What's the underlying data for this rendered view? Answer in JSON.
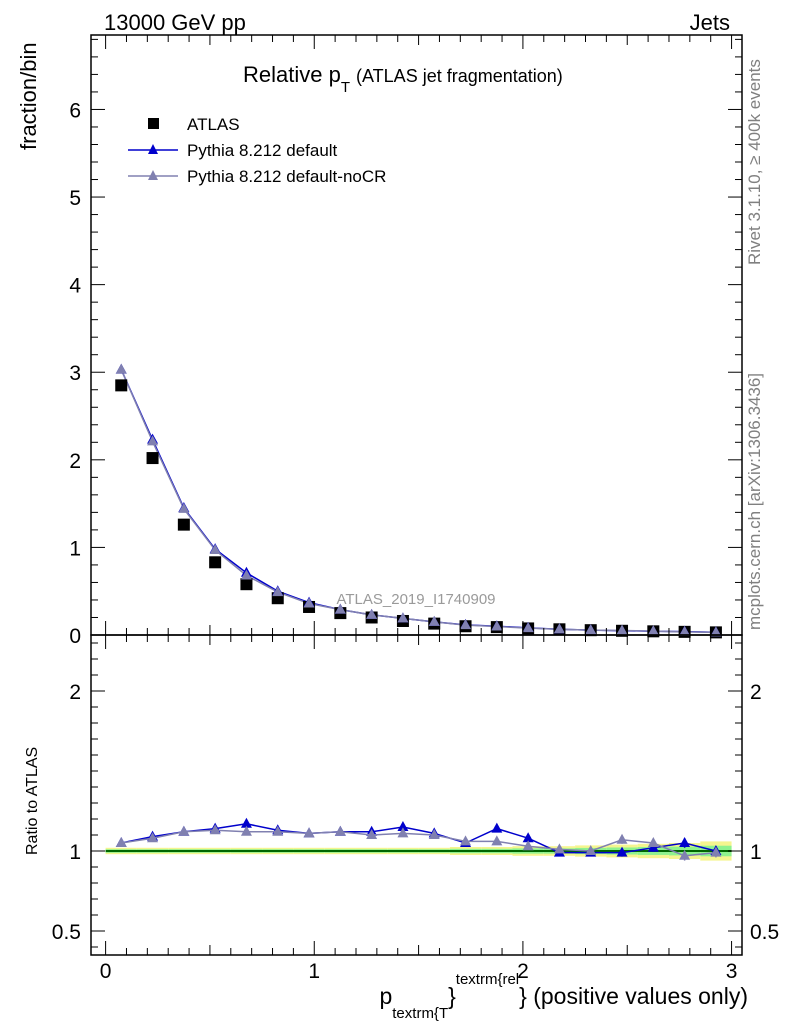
{
  "header": {
    "left": "13000 GeV pp",
    "right": "Jets"
  },
  "side_text": {
    "rivet": "Rivet 3.1.10, ≥ 400k events",
    "mcplots": "mcplots.cern.ch [arXiv:1306.3436]"
  },
  "chart_data": [
    {
      "type": "scatter",
      "panel": "main",
      "title_main": "Relative p",
      "title_sub": "T",
      "title_paren": "(ATLAS jet fragmentation)",
      "ylabel": "fraction/bin",
      "analysis_label": "ATLAS_2019_I1740909",
      "xlim": [
        -0.07,
        3.05
      ],
      "ylim": [
        0,
        6.85
      ],
      "yticks": [
        0,
        1,
        2,
        3,
        4,
        5,
        6
      ],
      "x": [
        0.075,
        0.225,
        0.375,
        0.525,
        0.675,
        0.825,
        0.975,
        1.125,
        1.275,
        1.425,
        1.575,
        1.725,
        1.875,
        2.025,
        2.175,
        2.325,
        2.475,
        2.625,
        2.775,
        2.925
      ],
      "legend": [
        "ATLAS",
        "Pythia 8.212 default",
        "Pythia 8.212 default-noCR"
      ],
      "series": [
        {
          "name": "ATLAS",
          "color": "#000000",
          "marker": "square",
          "values": [
            2.85,
            2.02,
            1.26,
            0.83,
            0.58,
            0.42,
            0.32,
            0.25,
            0.2,
            0.16,
            0.13,
            0.1,
            0.09,
            0.075,
            0.065,
            0.055,
            0.048,
            0.042,
            0.036,
            0.03
          ]
        },
        {
          "name": "Pythia 8.212 default",
          "color": "#0000cc",
          "marker": "triangle",
          "values": [
            3.03,
            2.23,
            1.45,
            0.98,
            0.71,
            0.5,
            0.37,
            0.29,
            0.23,
            0.19,
            0.15,
            0.115,
            0.1,
            0.082,
            0.066,
            0.056,
            0.049,
            0.043,
            0.038,
            0.031
          ]
        },
        {
          "name": "Pythia 8.212 default-noCR",
          "color": "#8080b0",
          "marker": "triangle",
          "values": [
            3.03,
            2.21,
            1.44,
            0.97,
            0.68,
            0.49,
            0.36,
            0.29,
            0.23,
            0.19,
            0.15,
            0.113,
            0.097,
            0.079,
            0.066,
            0.055,
            0.051,
            0.044,
            0.035,
            0.03
          ]
        }
      ]
    },
    {
      "type": "line",
      "panel": "ratio",
      "ylabel": "Ratio to ATLAS",
      "xlabel_main": "p",
      "xlabel_sub": "textrm{T",
      "xlabel_brace": "}",
      "xlabel_sup": "textrm{rel",
      "xlabel_tail": "} (positive values only)",
      "xlim": [
        -0.07,
        3.05
      ],
      "ylim": [
        0.35,
        2.35
      ],
      "yticks": [
        0.5,
        1,
        2
      ],
      "xticks": [
        0,
        1,
        2,
        3
      ],
      "x": [
        0.075,
        0.225,
        0.375,
        0.525,
        0.675,
        0.825,
        0.975,
        1.125,
        1.275,
        1.425,
        1.575,
        1.725,
        1.875,
        2.025,
        2.175,
        2.325,
        2.475,
        2.625,
        2.775,
        2.925
      ],
      "band_halfwidth": [
        0.02,
        0.02,
        0.02,
        0.02,
        0.02,
        0.02,
        0.02,
        0.02,
        0.02,
        0.02,
        0.02,
        0.025,
        0.025,
        0.03,
        0.03,
        0.035,
        0.04,
        0.045,
        0.05,
        0.06
      ],
      "series": [
        {
          "name": "Pythia 8.212 default",
          "color": "#0000cc",
          "values": [
            1.05,
            1.09,
            1.12,
            1.14,
            1.17,
            1.13,
            1.11,
            1.12,
            1.12,
            1.15,
            1.11,
            1.05,
            1.14,
            1.08,
            0.99,
            0.99,
            0.99,
            1.02,
            1.05,
            1.0
          ],
          "errors": [
            0.005,
            0.005,
            0.005,
            0.005,
            0.008,
            0.008,
            0.008,
            0.01,
            0.01,
            0.01,
            0.012,
            0.012,
            0.015,
            0.02,
            0.02,
            0.02,
            0.025,
            0.025,
            0.03,
            0.03
          ]
        },
        {
          "name": "Pythia 8.212 default-noCR",
          "color": "#8080b0",
          "values": [
            1.05,
            1.08,
            1.12,
            1.13,
            1.12,
            1.12,
            1.11,
            1.12,
            1.1,
            1.11,
            1.1,
            1.06,
            1.06,
            1.03,
            1.01,
            1.0,
            1.07,
            1.05,
            0.97,
            0.99
          ],
          "errors": [
            0.005,
            0.005,
            0.005,
            0.005,
            0.008,
            0.008,
            0.008,
            0.01,
            0.01,
            0.01,
            0.012,
            0.012,
            0.015,
            0.02,
            0.02,
            0.02,
            0.025,
            0.025,
            0.03,
            0.03
          ]
        }
      ]
    }
  ]
}
